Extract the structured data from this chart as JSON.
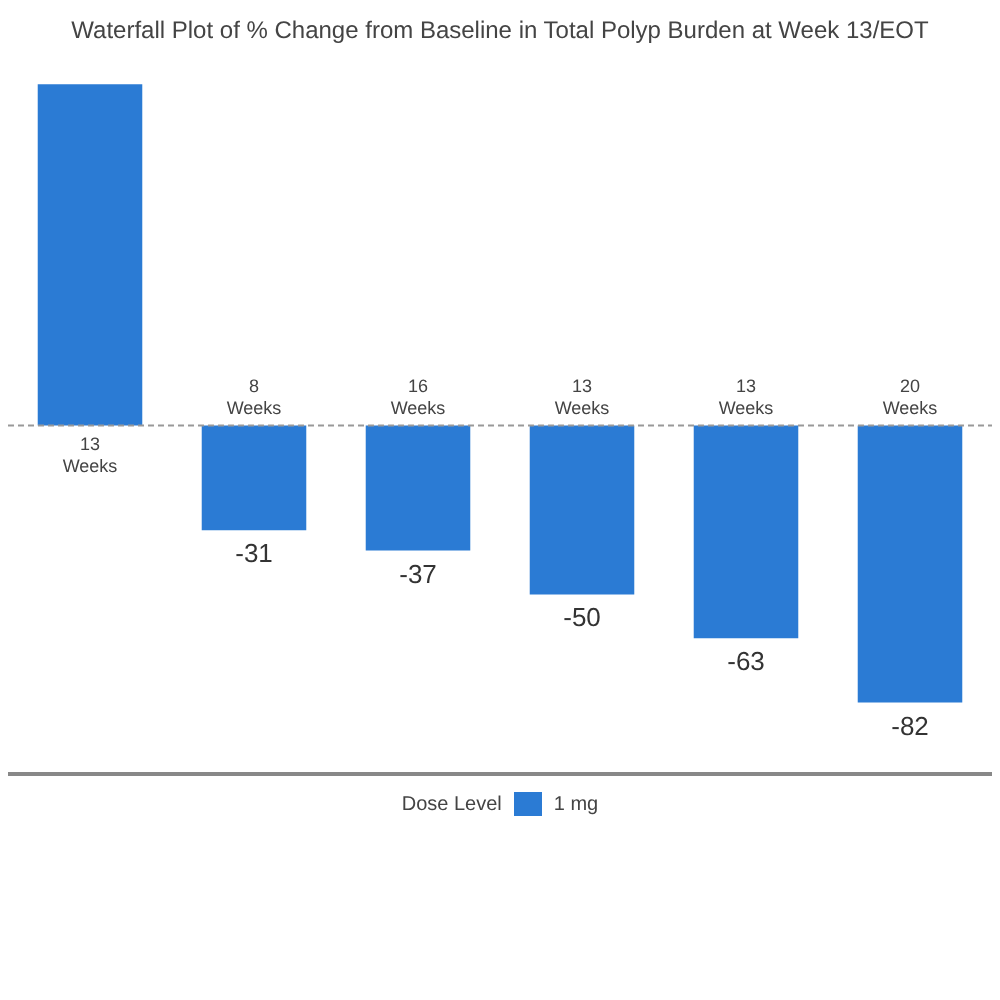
{
  "chart_data": {
    "type": "bar",
    "title": "Waterfall Plot of % Change from Baseline in Total Polyp Burden at Week 13/EOT",
    "categories": [
      "13 Weeks",
      "8 Weeks",
      "16 Weeks",
      "13 Weeks",
      "13 Weeks",
      "20 Weeks"
    ],
    "series": [
      {
        "name": "1 mg",
        "color": "#2b7bd4",
        "values": [
          101,
          -31,
          -37,
          -50,
          -63,
          -82
        ],
        "value_labels": [
          null,
          "-31",
          "-37",
          "-50",
          "-63",
          "-82"
        ]
      }
    ],
    "ref_lines": [
      {
        "axis": "y",
        "value": 0,
        "color": "#999999",
        "line_style": "dashed"
      }
    ],
    "legend_title": "Dose Level",
    "legend": "bottom",
    "tick_labels": false
  }
}
